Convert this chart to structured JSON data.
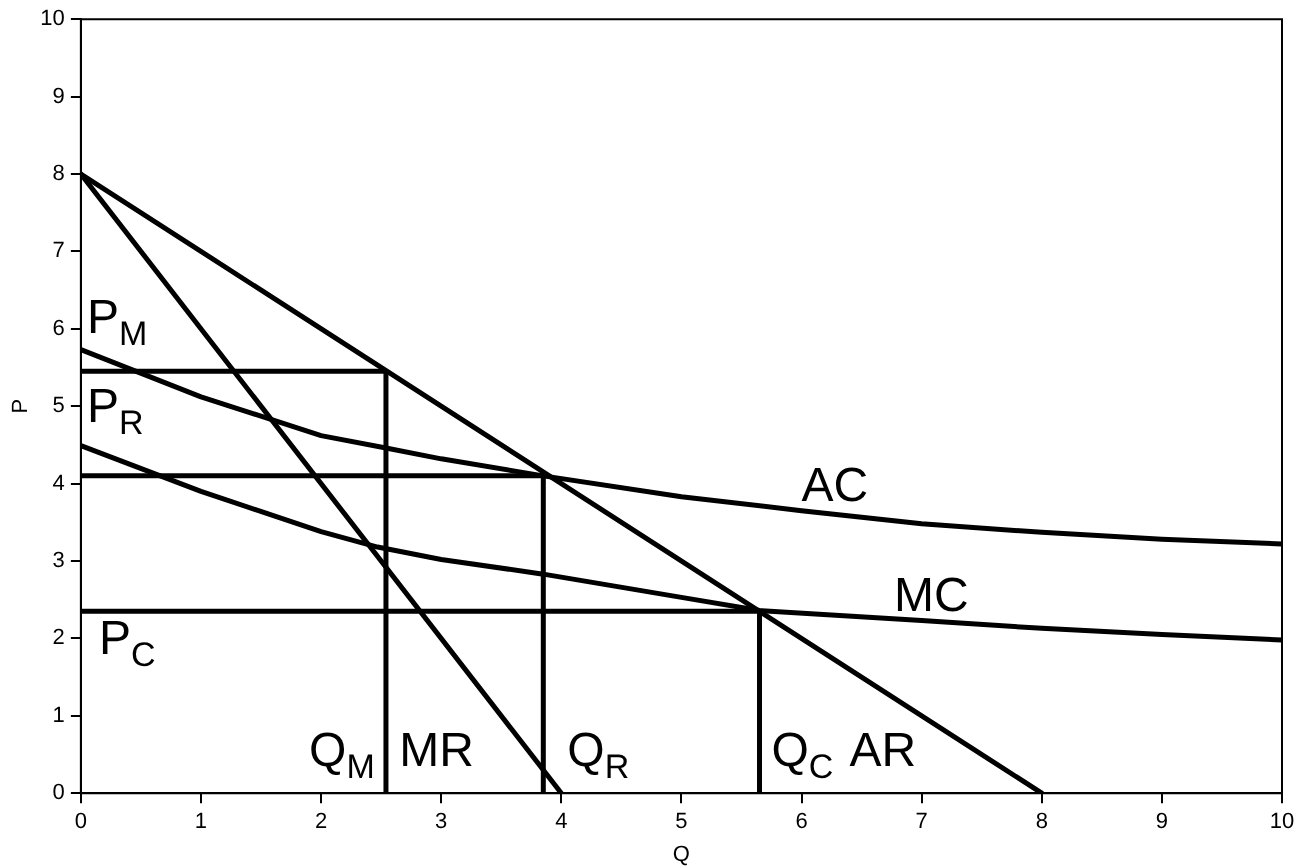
{
  "chart_data": {
    "type": "line",
    "xlabel": "Q",
    "ylabel": "P",
    "xlim": [
      0,
      10
    ],
    "xticks": [
      0,
      1,
      2,
      3,
      4,
      5,
      6,
      7,
      8,
      9,
      10
    ],
    "ylim": [
      0,
      10
    ],
    "yticks": [
      0,
      1,
      2,
      3,
      4,
      5,
      6,
      7,
      8,
      9,
      10
    ],
    "grid": false,
    "legend": false,
    "marker": "none",
    "line_style": "solid",
    "series": [
      {
        "color": "#000000",
        "x": [
          0,
          8
        ],
        "values": [
          8,
          0
        ]
      },
      {
        "color": "#000000",
        "x": [
          0,
          4
        ],
        "values": [
          8,
          0
        ]
      },
      {
        "color": "#000000",
        "x": [
          0,
          1,
          2,
          2.54,
          3,
          3.85,
          5,
          6,
          7,
          8,
          9,
          10
        ],
        "values": [
          5.73,
          5.12,
          4.62,
          4.46,
          4.32,
          4.1,
          3.83,
          3.65,
          3.48,
          3.37,
          3.28,
          3.22
        ]
      },
      {
        "color": "#000000",
        "x": [
          0,
          1,
          2,
          2.47,
          3,
          3.85,
          5,
          5.65,
          7,
          8,
          9,
          10
        ],
        "values": [
          4.49,
          3.9,
          3.38,
          3.18,
          3.02,
          2.83,
          2.53,
          2.36,
          2.23,
          2.13,
          2.05,
          1.98
        ]
      },
      {
        "color": "#000000",
        "x": [
          0,
          2.54,
          2.54
        ],
        "values": [
          5.45,
          5.45,
          0
        ]
      },
      {
        "color": "#000000",
        "x": [
          0,
          3.85,
          3.85
        ],
        "values": [
          4.1,
          4.1,
          0
        ]
      },
      {
        "color": "#000000",
        "x": [
          0,
          5.65,
          5.65
        ],
        "values": [
          2.35,
          2.35,
          0
        ]
      }
    ],
    "annotations": [
      "P$_{M}$",
      "P$_{R}$",
      "P$_{C}$",
      "Q$_{M}$",
      "MR",
      "Q$_{R}$",
      "Q$_{C}$",
      "AR",
      "AC",
      "MC"
    ]
  }
}
